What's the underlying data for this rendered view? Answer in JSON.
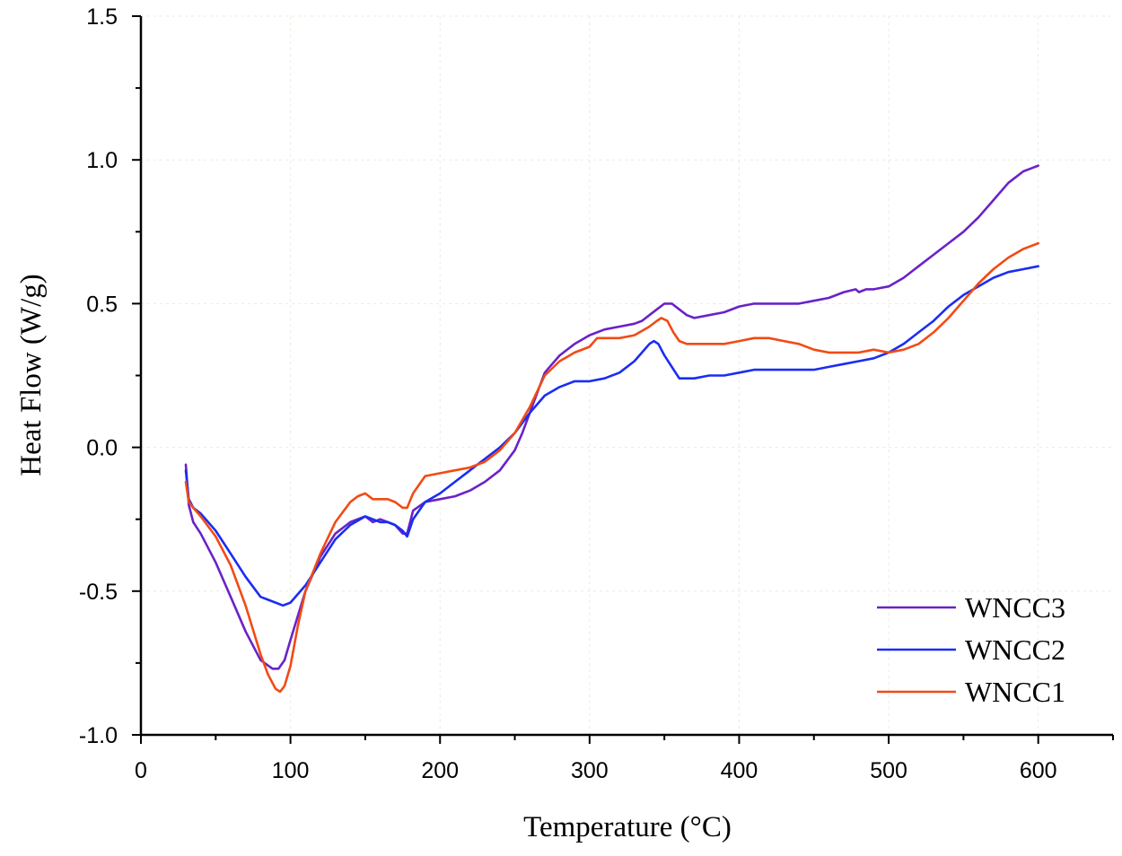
{
  "chart_data": {
    "type": "line",
    "title": "",
    "xlabel": "Temperature",
    "xlabel_unit": "(°C)",
    "ylabel": "Heat Flow (W/g)",
    "xlim": [
      0,
      650
    ],
    "ylim": [
      -1.0,
      1.5
    ],
    "xticks": [
      0,
      100,
      200,
      300,
      400,
      500,
      600
    ],
    "yticks": [
      -1.0,
      -0.5,
      0.0,
      0.5,
      1.0,
      1.5
    ],
    "xtick_labels": [
      "0",
      "100",
      "200",
      "300",
      "400",
      "500",
      "600"
    ],
    "ytick_labels": [
      "-1.0",
      "-0.5",
      "0.0",
      "0.5",
      "1.0",
      "1.5"
    ],
    "grid": true,
    "legend_position": "bottom-right",
    "series": [
      {
        "name": "WNCC3",
        "color": "#6a22c8",
        "x": [
          30,
          32,
          35,
          40,
          50,
          60,
          70,
          80,
          88,
          92,
          96,
          100,
          110,
          120,
          130,
          140,
          150,
          155,
          160,
          165,
          170,
          175,
          178,
          182,
          190,
          200,
          210,
          220,
          230,
          240,
          250,
          255,
          260,
          270,
          280,
          290,
          300,
          310,
          320,
          330,
          335,
          340,
          345,
          350,
          355,
          360,
          365,
          370,
          380,
          390,
          400,
          410,
          420,
          430,
          440,
          450,
          460,
          470,
          478,
          480,
          485,
          490,
          500,
          510,
          520,
          530,
          540,
          550,
          560,
          570,
          580,
          590,
          595,
          600
        ],
        "y": [
          -0.06,
          -0.2,
          -0.26,
          -0.3,
          -0.4,
          -0.52,
          -0.64,
          -0.74,
          -0.77,
          -0.77,
          -0.74,
          -0.67,
          -0.5,
          -0.38,
          -0.3,
          -0.26,
          -0.24,
          -0.26,
          -0.25,
          -0.26,
          -0.27,
          -0.3,
          -0.3,
          -0.22,
          -0.19,
          -0.18,
          -0.17,
          -0.15,
          -0.12,
          -0.08,
          -0.01,
          0.05,
          0.12,
          0.26,
          0.32,
          0.36,
          0.39,
          0.41,
          0.42,
          0.43,
          0.44,
          0.46,
          0.48,
          0.5,
          0.5,
          0.48,
          0.46,
          0.45,
          0.46,
          0.47,
          0.49,
          0.5,
          0.5,
          0.5,
          0.5,
          0.51,
          0.52,
          0.54,
          0.55,
          0.54,
          0.55,
          0.55,
          0.56,
          0.59,
          0.63,
          0.67,
          0.71,
          0.75,
          0.8,
          0.86,
          0.92,
          0.96,
          0.97,
          0.98
        ]
      },
      {
        "name": "WNCC2",
        "color": "#1a2df2",
        "x": [
          30,
          32,
          35,
          40,
          50,
          60,
          70,
          80,
          85,
          90,
          95,
          100,
          110,
          120,
          130,
          140,
          150,
          155,
          160,
          165,
          170,
          175,
          178,
          182,
          190,
          200,
          210,
          220,
          230,
          240,
          250,
          260,
          270,
          280,
          290,
          300,
          310,
          320,
          330,
          335,
          340,
          343,
          346,
          350,
          355,
          360,
          365,
          370,
          380,
          390,
          400,
          410,
          420,
          430,
          440,
          450,
          460,
          470,
          480,
          490,
          500,
          510,
          520,
          530,
          540,
          550,
          560,
          570,
          580,
          590,
          600
        ],
        "y": [
          -0.08,
          -0.18,
          -0.21,
          -0.23,
          -0.29,
          -0.37,
          -0.45,
          -0.52,
          -0.53,
          -0.54,
          -0.55,
          -0.54,
          -0.48,
          -0.4,
          -0.32,
          -0.27,
          -0.24,
          -0.25,
          -0.26,
          -0.26,
          -0.27,
          -0.29,
          -0.31,
          -0.25,
          -0.19,
          -0.16,
          -0.12,
          -0.08,
          -0.04,
          0.0,
          0.05,
          0.12,
          0.18,
          0.21,
          0.23,
          0.23,
          0.24,
          0.26,
          0.3,
          0.33,
          0.36,
          0.37,
          0.36,
          0.32,
          0.28,
          0.24,
          0.24,
          0.24,
          0.25,
          0.25,
          0.26,
          0.27,
          0.27,
          0.27,
          0.27,
          0.27,
          0.28,
          0.29,
          0.3,
          0.31,
          0.33,
          0.36,
          0.4,
          0.44,
          0.49,
          0.53,
          0.56,
          0.59,
          0.61,
          0.62,
          0.63
        ]
      },
      {
        "name": "WNCC1",
        "color": "#f24a14",
        "x": [
          30,
          32,
          35,
          40,
          50,
          60,
          70,
          80,
          85,
          90,
          93,
          96,
          100,
          105,
          110,
          120,
          130,
          140,
          145,
          150,
          155,
          160,
          165,
          170,
          175,
          178,
          182,
          190,
          200,
          210,
          220,
          230,
          240,
          250,
          260,
          270,
          280,
          290,
          300,
          305,
          310,
          320,
          330,
          340,
          345,
          348,
          352,
          356,
          360,
          365,
          370,
          380,
          390,
          400,
          410,
          420,
          430,
          440,
          450,
          460,
          470,
          480,
          490,
          500,
          510,
          520,
          530,
          540,
          550,
          560,
          570,
          580,
          590,
          600
        ],
        "y": [
          -0.12,
          -0.19,
          -0.21,
          -0.24,
          -0.31,
          -0.41,
          -0.55,
          -0.72,
          -0.79,
          -0.84,
          -0.85,
          -0.83,
          -0.76,
          -0.62,
          -0.5,
          -0.37,
          -0.26,
          -0.19,
          -0.17,
          -0.16,
          -0.18,
          -0.18,
          -0.18,
          -0.19,
          -0.21,
          -0.21,
          -0.16,
          -0.1,
          -0.09,
          -0.08,
          -0.07,
          -0.05,
          -0.01,
          0.05,
          0.14,
          0.25,
          0.3,
          0.33,
          0.35,
          0.38,
          0.38,
          0.38,
          0.39,
          0.42,
          0.44,
          0.45,
          0.44,
          0.4,
          0.37,
          0.36,
          0.36,
          0.36,
          0.36,
          0.37,
          0.38,
          0.38,
          0.37,
          0.36,
          0.34,
          0.33,
          0.33,
          0.33,
          0.34,
          0.33,
          0.34,
          0.36,
          0.4,
          0.45,
          0.51,
          0.57,
          0.62,
          0.66,
          0.69,
          0.71
        ]
      }
    ]
  }
}
